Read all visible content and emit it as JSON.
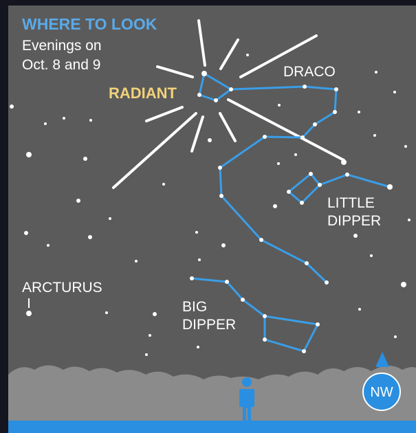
{
  "header": {
    "title": "WHERE TO LOOK",
    "subtitle_lines": [
      "Evenings on",
      "Oct. 8 and 9"
    ]
  },
  "labels": {
    "radiant": "RADIANT",
    "draco": "DRACO",
    "little_dipper": [
      "LITTLE",
      "DIPPER"
    ],
    "arcturus": "ARCTURUS",
    "big_dipper": [
      "BIG",
      "DIPPER"
    ]
  },
  "compass": "NW"
}
